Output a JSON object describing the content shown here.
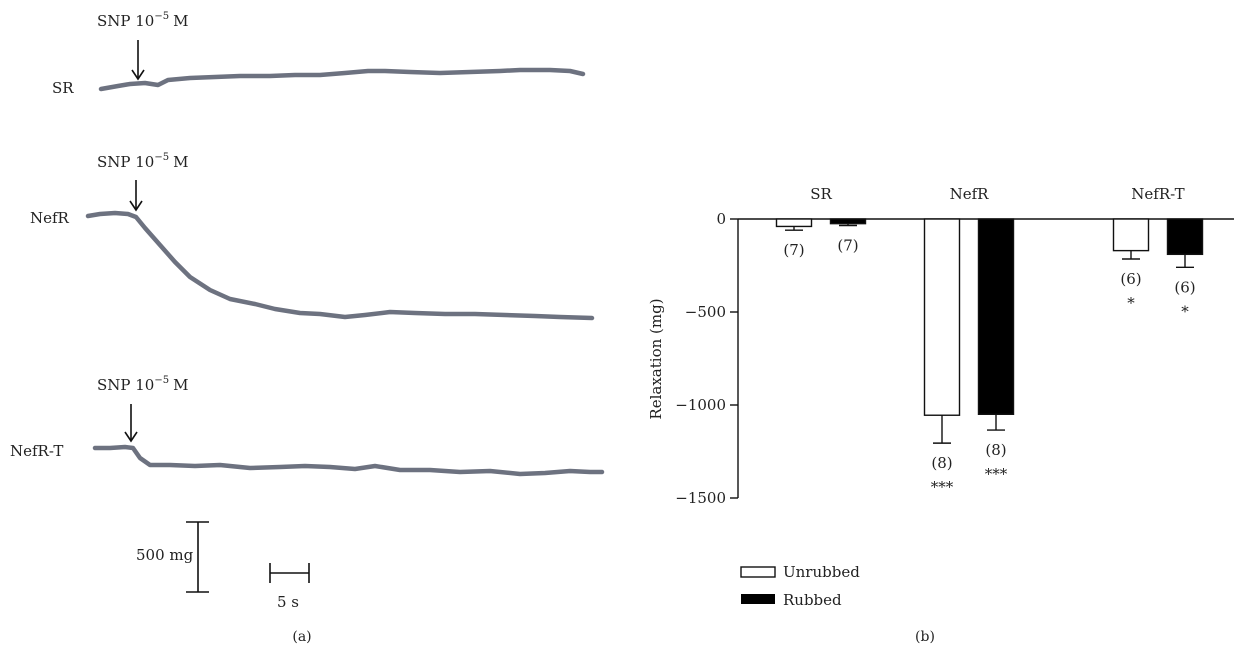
{
  "panel_a": {
    "caption": "(a)",
    "traces": [
      {
        "label": "SR",
        "annotation": "SNP 10",
        "exponent": "−5",
        "unit": "M"
      },
      {
        "label": "NefR",
        "annotation": "SNP 10",
        "exponent": "−5",
        "unit": "M"
      },
      {
        "label": "NefR-T",
        "annotation": "SNP 10",
        "exponent": "−5",
        "unit": "M"
      }
    ],
    "scale_bar_y": "500 mg",
    "scale_bar_x": "5 s"
  },
  "panel_b": {
    "caption": "(b)",
    "group_labels": [
      "SR",
      "NefR",
      "NefR-T"
    ],
    "legend": [
      "Unrubbed",
      "Rubbed"
    ]
  },
  "colors": {
    "trace": "#6d7280",
    "ink": "#111111",
    "rubbed": "#000000",
    "unrubbed": "#ffffff"
  },
  "chart_data": [
    {
      "type": "bar",
      "categories": [
        "SR",
        "NefR",
        "NefR-T"
      ],
      "series": [
        {
          "name": "Unrubbed",
          "values": [
            -40,
            -1055,
            -170
          ],
          "errors": [
            20,
            150,
            45
          ],
          "n": [
            "(7)",
            "(8)",
            "(6)"
          ],
          "sig": [
            "",
            "***",
            "*"
          ]
        },
        {
          "name": "Rubbed",
          "values": [
            -25,
            -1050,
            -190
          ],
          "errors": [
            10,
            85,
            70
          ],
          "n": [
            "(7)",
            "(8)",
            "(6)"
          ],
          "sig": [
            "",
            "***",
            "*"
          ]
        }
      ],
      "ylabel": "Relaxation (mg)",
      "ylim": [
        -1500,
        0
      ],
      "yticks": [
        0,
        -500,
        -1000,
        -1500
      ],
      "ytick_labels": [
        "0",
        "−500",
        "−1000",
        "−1500"
      ],
      "legend_position": "bottom-left",
      "grid": false
    }
  ]
}
